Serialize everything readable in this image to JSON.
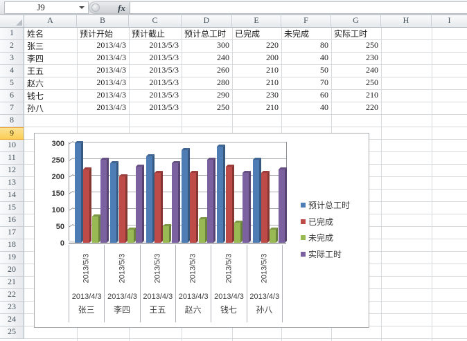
{
  "formula_bar": {
    "name_box": "J9",
    "fx_label": "fx"
  },
  "selection": {
    "active_cell": "J9",
    "highlighted_row": "9"
  },
  "columns": [
    "A",
    "B",
    "C",
    "D",
    "E",
    "F",
    "G",
    "H",
    "I"
  ],
  "row_numbers": [
    "1",
    "2",
    "3",
    "4",
    "5",
    "6",
    "7",
    "8",
    "9",
    "10",
    "11",
    "12",
    "13",
    "14",
    "15",
    "16",
    "17",
    "18",
    "19",
    "20",
    "21",
    "22",
    "23",
    "24",
    "25"
  ],
  "table": {
    "headers": [
      "姓名",
      "预计开始",
      "预计截止",
      "预计总工时",
      "已完成",
      "未完成",
      "实际工时"
    ],
    "rows": [
      [
        "张三",
        "2013/4/3",
        "2013/5/3",
        "300",
        "220",
        "80",
        "250"
      ],
      [
        "李四",
        "2013/4/3",
        "2013/5/3",
        "240",
        "200",
        "40",
        "230"
      ],
      [
        "王五",
        "2013/4/3",
        "2013/5/3",
        "260",
        "210",
        "50",
        "240"
      ],
      [
        "赵六",
        "2013/4/3",
        "2013/5/3",
        "280",
        "210",
        "70",
        "250"
      ],
      [
        "钱七",
        "2013/4/3",
        "2013/5/3",
        "290",
        "230",
        "60",
        "210"
      ],
      [
        "孙八",
        "2013/4/3",
        "2013/5/3",
        "250",
        "210",
        "40",
        "220"
      ]
    ]
  },
  "colors": {
    "row_highlight": "#FBD666",
    "grid_line": "#D7DADD",
    "chart_border": "#A9ACAF"
  },
  "chart_data": {
    "type": "bar",
    "style": "3d-clustered-column",
    "title": "",
    "categories": [
      "张三",
      "李四",
      "王五",
      "赵六",
      "钱七",
      "孙八"
    ],
    "x_axis_levels": {
      "end_dates_rotated": [
        "2013/5/3",
        "2013/5/3",
        "2013/5/3",
        "2013/5/3",
        "2013/5/3",
        "2013/5/3"
      ],
      "start_dates": [
        "2013/4/3",
        "2013/4/3",
        "2013/4/3",
        "2013/4/3",
        "2013/4/3",
        "2013/4/3"
      ]
    },
    "series": [
      {
        "name": "预计总工时",
        "color": "#4E7DB5",
        "values": [
          300,
          240,
          260,
          280,
          290,
          250
        ]
      },
      {
        "name": "已完成",
        "color": "#BE4B48",
        "values": [
          220,
          200,
          210,
          210,
          230,
          210
        ]
      },
      {
        "name": "未完成",
        "color": "#98B954",
        "values": [
          80,
          40,
          50,
          70,
          60,
          40
        ]
      },
      {
        "name": "实际工时",
        "color": "#7C61A1",
        "values": [
          250,
          230,
          240,
          250,
          210,
          220
        ]
      }
    ],
    "ylim": [
      0,
      300
    ],
    "ytick_step": 50,
    "ytick_labels": [
      "0",
      "50",
      "100",
      "150",
      "200",
      "250",
      "300"
    ],
    "grid": true,
    "legend_position": "right"
  }
}
